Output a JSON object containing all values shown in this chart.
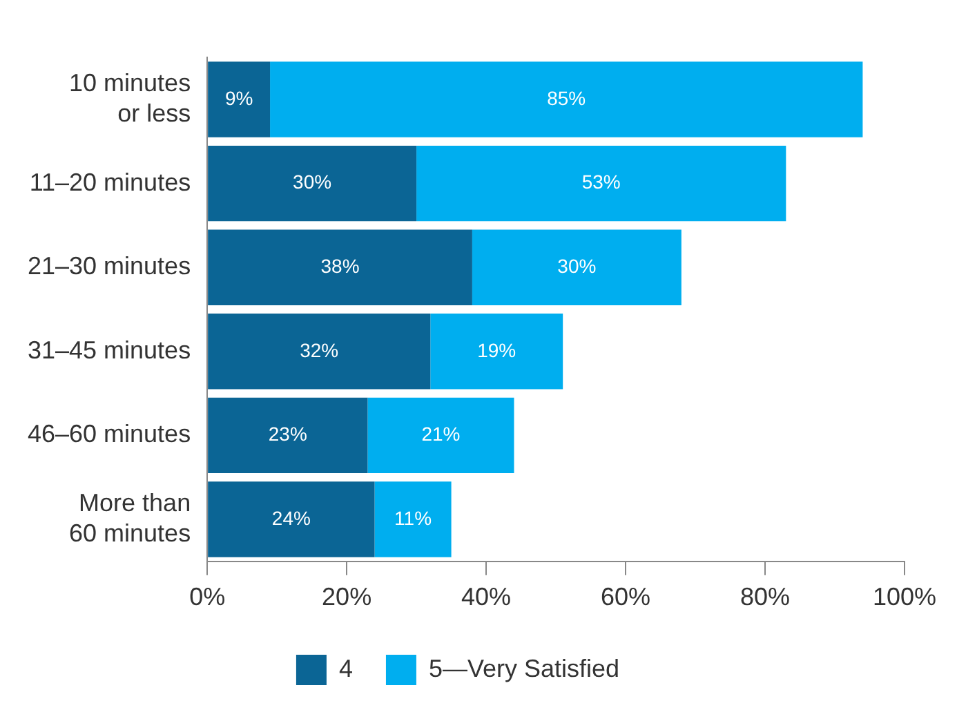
{
  "chart_data": {
    "type": "bar",
    "orientation": "horizontal",
    "stacked": true,
    "categories": [
      "10 minutes\nor less",
      "11–20 minutes",
      "21–30 minutes",
      "31–45 minutes",
      "46–60 minutes",
      "More than\n60 minutes"
    ],
    "series": [
      {
        "name": "4",
        "color": "#0b6595",
        "values": [
          9,
          30,
          38,
          32,
          23,
          24
        ],
        "value_labels": [
          "9%",
          "30%",
          "38%",
          "32%",
          "23%",
          "24%"
        ]
      },
      {
        "name": "5—Very Satisfied",
        "color": "#00aeef",
        "values": [
          85,
          53,
          30,
          19,
          21,
          11
        ],
        "value_labels": [
          "85%",
          "53%",
          "30%",
          "19%",
          "21%",
          "11%"
        ]
      }
    ],
    "xlim": [
      0,
      100
    ],
    "xticks": [
      {
        "value": 0,
        "label": "0%"
      },
      {
        "value": 20,
        "label": "20%"
      },
      {
        "value": 40,
        "label": "40%"
      },
      {
        "value": 60,
        "label": "60%"
      },
      {
        "value": 80,
        "label": "80%"
      },
      {
        "value": 100,
        "label": "100%"
      }
    ],
    "grid": false,
    "legend": "bottom"
  }
}
